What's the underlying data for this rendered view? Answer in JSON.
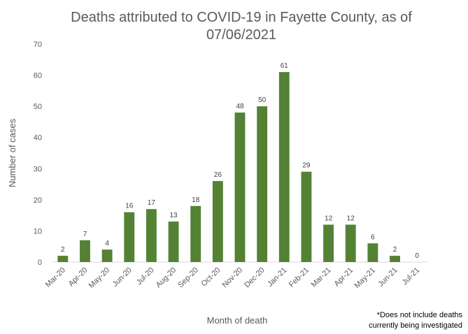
{
  "chart_data": {
    "type": "bar",
    "title_lines": [
      "Deaths attributed to COVID-19 in Fayette County, as of",
      "07/06/2021"
    ],
    "xlabel": "Month of death",
    "ylabel": "Number of cases",
    "categories": [
      "Mar-20",
      "Apr-20",
      "May-20",
      "Jun-20",
      "Jul-20",
      "Aug-20",
      "Sep-20",
      "Oct-20",
      "Nov-20",
      "Dec-20",
      "Jan-21",
      "Feb-21",
      "Mar-21",
      "Apr-21",
      "May-21",
      "Jun-21",
      "Jul-21"
    ],
    "values": [
      2,
      7,
      4,
      16,
      17,
      13,
      18,
      26,
      48,
      50,
      61,
      29,
      12,
      12,
      6,
      2,
      0
    ],
    "ylim": [
      0,
      70
    ],
    "yticks": [
      0,
      10,
      20,
      30,
      40,
      50,
      60,
      70
    ],
    "grid": false,
    "legend": false,
    "bar_color": "#548235",
    "data_labels": true,
    "footnote_lines": [
      "*Does not include deaths",
      "currently being investigated"
    ]
  }
}
